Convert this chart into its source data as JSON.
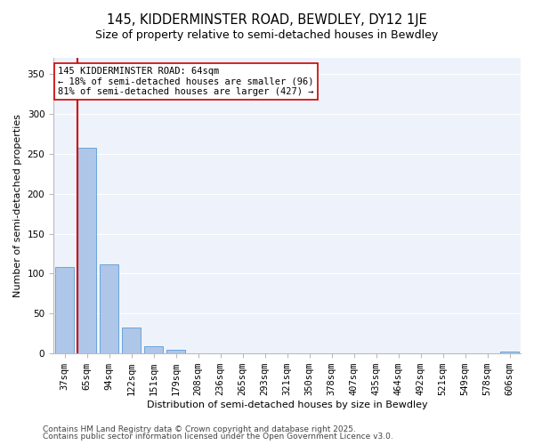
{
  "title_line1": "145, KIDDERMINSTER ROAD, BEWDLEY, DY12 1JE",
  "title_line2": "Size of property relative to semi-detached houses in Bewdley",
  "xlabel": "Distribution of semi-detached houses by size in Bewdley",
  "ylabel": "Number of semi-detached properties",
  "categories": [
    "37sqm",
    "65sqm",
    "94sqm",
    "122sqm",
    "151sqm",
    "179sqm",
    "208sqm",
    "236sqm",
    "265sqm",
    "293sqm",
    "321sqm",
    "350sqm",
    "378sqm",
    "407sqm",
    "435sqm",
    "464sqm",
    "492sqm",
    "521sqm",
    "549sqm",
    "578sqm",
    "606sqm"
  ],
  "values": [
    108,
    257,
    112,
    33,
    9,
    5,
    0,
    0,
    0,
    0,
    0,
    0,
    0,
    0,
    0,
    0,
    0,
    0,
    0,
    0,
    3
  ],
  "bar_color": "#aec6e8",
  "bar_edge_color": "#5b9bd5",
  "vline_color": "#cc0000",
  "annotation_title": "145 KIDDERMINSTER ROAD: 64sqm",
  "annotation_line1": "← 18% of semi-detached houses are smaller (96)",
  "annotation_line2": "81% of semi-detached houses are larger (427) →",
  "annotation_fontsize": 7.5,
  "ylim": [
    0,
    370
  ],
  "yticks": [
    0,
    50,
    100,
    150,
    200,
    250,
    300,
    350
  ],
  "background_color": "#eef3fb",
  "grid_color": "#ffffff",
  "footer_line1": "Contains HM Land Registry data © Crown copyright and database right 2025.",
  "footer_line2": "Contains public sector information licensed under the Open Government Licence v3.0.",
  "title_fontsize": 10.5,
  "subtitle_fontsize": 9,
  "axis_label_fontsize": 8,
  "tick_fontsize": 7.5,
  "footer_fontsize": 6.5
}
